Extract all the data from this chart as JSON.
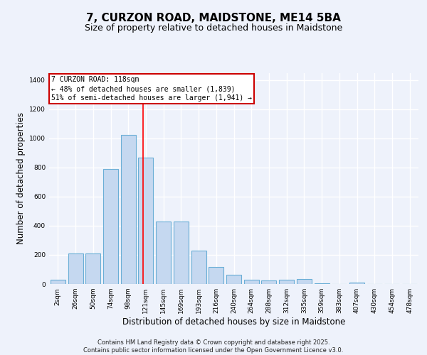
{
  "title1": "7, CURZON ROAD, MAIDSTONE, ME14 5BA",
  "title2": "Size of property relative to detached houses in Maidstone",
  "xlabel": "Distribution of detached houses by size in Maidstone",
  "ylabel": "Number of detached properties",
  "categories": [
    "2sqm",
    "26sqm",
    "50sqm",
    "74sqm",
    "98sqm",
    "121sqm",
    "145sqm",
    "169sqm",
    "193sqm",
    "216sqm",
    "240sqm",
    "264sqm",
    "288sqm",
    "312sqm",
    "335sqm",
    "359sqm",
    "383sqm",
    "407sqm",
    "430sqm",
    "454sqm",
    "478sqm"
  ],
  "values": [
    30,
    210,
    210,
    790,
    1025,
    870,
    430,
    430,
    230,
    115,
    65,
    30,
    25,
    30,
    35,
    5,
    0,
    10,
    0,
    0,
    0
  ],
  "bar_color": "#c5d8f0",
  "bar_edge_color": "#6aaed6",
  "bar_width": 0.85,
  "red_line_x": 4.85,
  "annotation_label": "7 CURZON ROAD: 118sqm",
  "annotation_line1": "← 48% of detached houses are smaller (1,839)",
  "annotation_line2": "51% of semi-detached houses are larger (1,941) →",
  "annotation_box_color": "#ffffff",
  "annotation_box_edge": "#cc0000",
  "ylim": [
    0,
    1450
  ],
  "yticks": [
    0,
    200,
    400,
    600,
    800,
    1000,
    1200,
    1400
  ],
  "bg_color": "#eef2fb",
  "plot_bg_color": "#eef2fb",
  "grid_color": "#ffffff",
  "footer": "Contains HM Land Registry data © Crown copyright and database right 2025.\nContains public sector information licensed under the Open Government Licence v3.0.",
  "title_fontsize": 11,
  "subtitle_fontsize": 9,
  "tick_fontsize": 6.5,
  "label_fontsize": 8.5,
  "annotation_fontsize": 7
}
